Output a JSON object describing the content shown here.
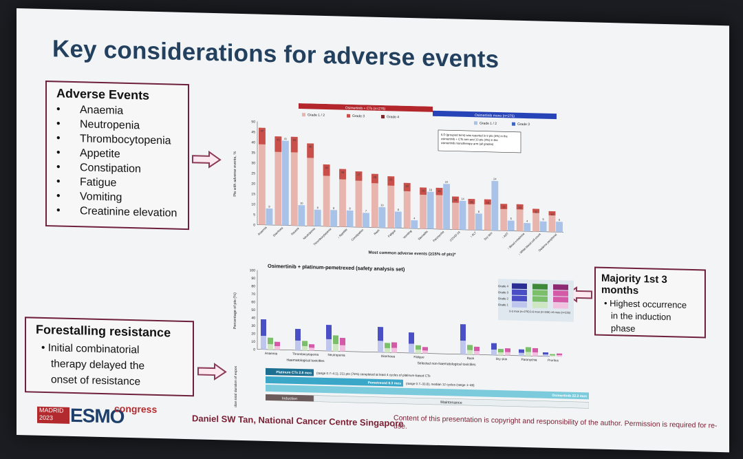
{
  "slide": {
    "title": "Key considerations for adverse events"
  },
  "adverse_events_box": {
    "heading": "Adverse Events",
    "items": [
      "Anaemia",
      "Neutropenia",
      "Thrombocytopenia",
      "Appetite",
      "Constipation",
      "Fatigue",
      "Vomiting",
      "Creatinine elevation"
    ]
  },
  "forestalling_box": {
    "heading": "Forestalling resistance",
    "lines": [
      "• Initial combinatorial",
      "therapy delayed the",
      "onset of resistance"
    ]
  },
  "majority_box": {
    "heading": "Majority 1st 3 months",
    "lines": [
      "• Highest occurrence",
      "in the induction",
      "phase"
    ]
  },
  "chart_data": [
    {
      "type": "bar",
      "group_headers": [
        "Osimertinib + CTs (n=276)",
        "Osimertinib mono (n=275)"
      ],
      "legend": [
        "Grade 1 / 2",
        "Grade 3",
        "Grade 4",
        "Grade 1 / 2",
        "Grade 3"
      ],
      "annotation": "ILD (grouped term) was reported in 9 pts (3%) in the osimertinib + CTs arm and 10 pts (4%) in the osimertinib monotherapy arm (all grades)",
      "ylabel": "Pts with adverse events, %",
      "xlabel": "Most common adverse events (≥15% of pts)*",
      "ylim": [
        0,
        50
      ],
      "categories": [
        "Anaemia",
        "Diarrhoea",
        "Nausea",
        "Neutropenia",
        "Thrombocytopenia",
        "↓ Appetite",
        "Constipation",
        "Rash",
        "Fatigue",
        "Vomiting",
        "Stomatitis",
        "Paronychia",
        "COVID-19",
        "↑ ALT",
        "Dry skin",
        "↑ AST",
        "↑ Blood creatinine",
        "↓ White blood cell count",
        "Oedema peripheral"
      ],
      "series": [
        {
          "name": "Osimertinib + CTs",
          "values": [
            47,
            43,
            43,
            40,
            30,
            28,
            27,
            26,
            25,
            22,
            20,
            20,
            16,
            15,
            15,
            13,
            13,
            11,
            10
          ]
        },
        {
          "name": "Osimertinib mono",
          "values": [
            8,
            41,
            10,
            8,
            8,
            8,
            7,
            10,
            8,
            4,
            18,
            22,
            14,
            8,
            24,
            5,
            4,
            5,
            5
          ]
        }
      ]
    },
    {
      "type": "bar",
      "title": "Osimertinib + platinum-pemetrexed (safety analysis set)",
      "ylabel": "Percentage of pts (%)",
      "ylim": [
        0,
        100
      ],
      "group_labels": [
        "Haematological toxicities",
        "Selected non-haematological toxicities"
      ],
      "categories": [
        "Anaemia",
        "Thrombocytopenia",
        "Neutropenia",
        "Diarrhoea",
        "Fatigue",
        "Rash",
        "Dry skin",
        "Paronychia",
        "Pruritus"
      ],
      "period_legend": [
        "0-3 mos (n=276)",
        "3-6 mos (n=236)",
        ">6 mos (n=226)"
      ],
      "grade_legend": [
        "Grade 4",
        "Grade 3",
        "Grade 2",
        "Grade 1"
      ],
      "series": [
        {
          "name": "0-3 mos",
          "values": [
            38,
            27,
            33,
            32,
            26,
            38,
            15,
            8,
            5
          ]
        },
        {
          "name": "3-6 mos",
          "values": [
            15,
            12,
            20,
            12,
            10,
            12,
            8,
            11,
            3
          ]
        },
        {
          "name": ">6 mos",
          "values": [
            10,
            8,
            17,
            13,
            8,
            10,
            9,
            10,
            4
          ]
        }
      ]
    }
  ],
  "timeline": {
    "ylabel": "Median total duration of exposure",
    "bars": [
      {
        "label": "Platinum CTs 2.8 mos",
        "note": "(range 0.7–4.1); 211 pts (76%) completed at least 4 cycles of platinum-based CTs",
        "color": "#1d6f92"
      },
      {
        "label": "Pemetrexed 8.3 mos",
        "note": "(range 0.7–33.8); median 12 cycles (range 1–48)",
        "color": "#3aa6c8"
      },
      {
        "label": "Osimertinib 22.3 mos",
        "note": "(range 0.1–33.8)",
        "color": "#7ccbdc"
      }
    ],
    "phases": [
      "Induction",
      "Maintenance"
    ]
  },
  "footer": {
    "author": "Daniel SW Tan, National Cancer Centre Singapore",
    "copyright": "Content of this presentation is copyright and responsibility of the author. Permission is required for re-use.",
    "logo_city": "MADRID",
    "logo_year": "2023",
    "logo_brand": "ESMO",
    "logo_suffix": "congress"
  },
  "colors": {
    "title": "#23415f",
    "box_border": "#6e1f3b",
    "combo_low": "#e7b5ad",
    "combo_g3": "#c9504a",
    "combo_g4": "#7a2a2a",
    "mono_low": "#a9c3e8",
    "mono_g3": "#3f65c4",
    "header_red": "#b3262c",
    "header_blue": "#2743b8"
  }
}
